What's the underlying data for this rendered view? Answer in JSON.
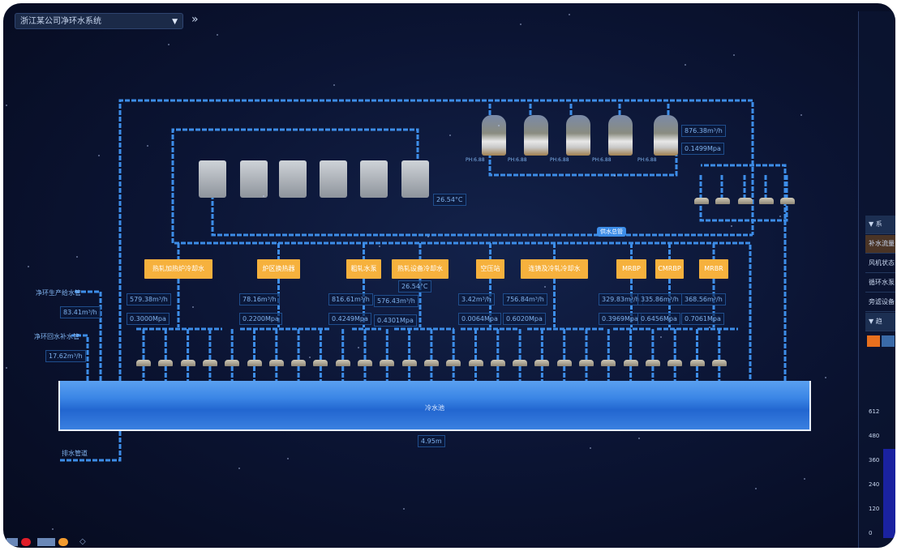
{
  "header": {
    "system_select": "浙江某公司净环水系统",
    "expand_icon": "double-chevron-right"
  },
  "cooling_top": {
    "flow": "876.38m³/h",
    "pressure": "0.1499Mpa",
    "filter_labels": [
      "PH:6.88",
      "PH:6.88",
      "PH:6.88",
      "PH:6.88",
      "PH:6.88"
    ]
  },
  "tower_temp": "26.54°C",
  "header_badge": "供水总管",
  "consumers": [
    {
      "name": "热轧加热炉冷却水",
      "flow": "579.38m³/h",
      "pressure": "0.3000Mpa"
    },
    {
      "name": "炉区换热器",
      "flow": "78.16m³/h",
      "pressure": "0.2200Mpa"
    },
    {
      "name": "粗轧水泵",
      "flow": "816.61m³/h",
      "pressure": "0.4249Mpa"
    },
    {
      "name": "热轧设备冷却水",
      "temp": "26.54°C",
      "flow": "576.43m³/h",
      "pressure": "0.4301Mpa"
    },
    {
      "name": "空压站",
      "flow": "3.42m³/h",
      "pressure": "0.0064Mpa"
    },
    {
      "name": "连铸及冷轧冷却水",
      "flow": "756.84m³/h",
      "pressure": "0.6020Mpa"
    },
    {
      "name": "MRBP",
      "flow": "329.83m³/h",
      "pressure": "0.3969Mpa"
    },
    {
      "name": "CMRBP",
      "flow": "335.86m³/h",
      "pressure": "0.6456Mpa"
    },
    {
      "name": "MRBR",
      "flow": "368.56m³/h",
      "pressure": "0.7061Mpa"
    }
  ],
  "left": {
    "supply_label": "净环生产给水管",
    "supply_flow": "83.41m³/h",
    "return_label": "净环回水补水管",
    "return_flow": "17.62m³/h",
    "drain_label": "排水管道"
  },
  "tank": {
    "name": "冷水池",
    "level": "4.95m"
  },
  "right_panel": {
    "section1": "▼ 系",
    "rows": [
      "补水流量",
      "风机状态",
      "循环水泵",
      "旁滤设备"
    ],
    "section2": "▼ 趋",
    "chart_ticks": [
      "612",
      "480",
      "360",
      "240",
      "120",
      "0"
    ]
  },
  "colors": {
    "pipe": "#3d8de8",
    "consumer": "#f6b13d",
    "water": "#2a70d8",
    "background": "#0b1433"
  }
}
